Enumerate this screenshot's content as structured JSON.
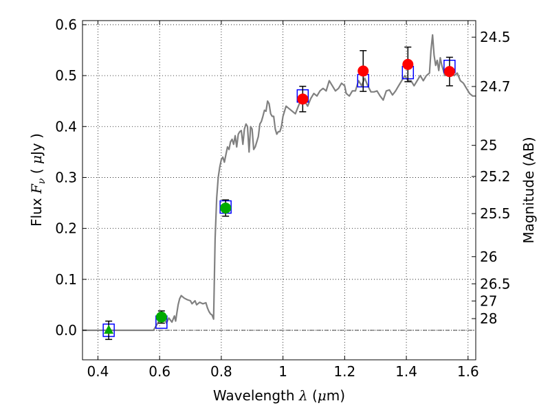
{
  "chart_data": {
    "type": "scatter",
    "xlabel": {
      "prefix": "Wavelength ",
      "symbol": "λ",
      "unit_open": " (",
      "unit": "μ",
      "unit_close": "m)"
    },
    "ylabel": {
      "prefix": "Flux  ",
      "symbol": "F",
      "subscript": "ν",
      "unit_open": "  ( ",
      "unit": "μ",
      "unit_close": "Jy )"
    },
    "y2label": "Magnitude (AB)",
    "xlim": [
      0.35,
      1.625
    ],
    "ylim": [
      -0.058,
      0.608
    ],
    "grid": true,
    "x_ticks": [
      {
        "value": 0.4,
        "label": "0.4"
      },
      {
        "value": 0.6,
        "label": "0.6"
      },
      {
        "value": 0.8,
        "label": "0.8"
      },
      {
        "value": 1.0,
        "label": "1"
      },
      {
        "value": 1.2,
        "label": "1.2"
      },
      {
        "value": 1.4,
        "label": "1.4"
      },
      {
        "value": 1.6,
        "label": "1.6"
      }
    ],
    "y_ticks": [
      {
        "value": 0.0,
        "label": "0.0"
      },
      {
        "value": 0.1,
        "label": "0.1"
      },
      {
        "value": 0.2,
        "label": "0.2"
      },
      {
        "value": 0.3,
        "label": "0.3"
      },
      {
        "value": 0.4,
        "label": "0.4"
      },
      {
        "value": 0.5,
        "label": "0.5"
      },
      {
        "value": 0.6,
        "label": "0.6"
      }
    ],
    "magnitude_ticks": [
      {
        "mag": 24.5,
        "label": "24.5"
      },
      {
        "mag": 24.7,
        "label": "24.7"
      },
      {
        "mag": 25.0,
        "label": "25"
      },
      {
        "mag": 25.2,
        "label": "25.2"
      },
      {
        "mag": 25.5,
        "label": "25.5"
      },
      {
        "mag": 26.0,
        "label": "26"
      },
      {
        "mag": 26.5,
        "label": "26.5"
      },
      {
        "mag": 27.0,
        "label": "27"
      },
      {
        "mag": 28.0,
        "label": "28"
      }
    ],
    "model_spectrum": {
      "color": "#808080",
      "points": [
        [
          0.35,
          0.0
        ],
        [
          0.58,
          0.0
        ],
        [
          0.6,
          0.02
        ],
        [
          0.615,
          0.024
        ],
        [
          0.622,
          0.014
        ],
        [
          0.63,
          0.024
        ],
        [
          0.64,
          0.016
        ],
        [
          0.648,
          0.028
        ],
        [
          0.652,
          0.018
        ],
        [
          0.655,
          0.03
        ],
        [
          0.66,
          0.05
        ],
        [
          0.665,
          0.062
        ],
        [
          0.67,
          0.068
        ],
        [
          0.68,
          0.063
        ],
        [
          0.69,
          0.06
        ],
        [
          0.7,
          0.058
        ],
        [
          0.705,
          0.052
        ],
        [
          0.715,
          0.058
        ],
        [
          0.72,
          0.05
        ],
        [
          0.73,
          0.055
        ],
        [
          0.74,
          0.052
        ],
        [
          0.75,
          0.054
        ],
        [
          0.755,
          0.044
        ],
        [
          0.76,
          0.037
        ],
        [
          0.765,
          0.032
        ],
        [
          0.77,
          0.03
        ],
        [
          0.775,
          0.022
        ],
        [
          0.78,
          0.18
        ],
        [
          0.785,
          0.26
        ],
        [
          0.79,
          0.3
        ],
        [
          0.795,
          0.32
        ],
        [
          0.8,
          0.335
        ],
        [
          0.805,
          0.34
        ],
        [
          0.81,
          0.33
        ],
        [
          0.815,
          0.345
        ],
        [
          0.82,
          0.36
        ],
        [
          0.825,
          0.355
        ],
        [
          0.83,
          0.37
        ],
        [
          0.835,
          0.375
        ],
        [
          0.84,
          0.365
        ],
        [
          0.845,
          0.382
        ],
        [
          0.85,
          0.36
        ],
        [
          0.855,
          0.385
        ],
        [
          0.86,
          0.39
        ],
        [
          0.865,
          0.392
        ],
        [
          0.87,
          0.365
        ],
        [
          0.875,
          0.395
        ],
        [
          0.88,
          0.405
        ],
        [
          0.885,
          0.4
        ],
        [
          0.89,
          0.35
        ],
        [
          0.895,
          0.4
        ],
        [
          0.9,
          0.395
        ],
        [
          0.905,
          0.355
        ],
        [
          0.91,
          0.36
        ],
        [
          0.915,
          0.37
        ],
        [
          0.92,
          0.38
        ],
        [
          0.925,
          0.405
        ],
        [
          0.93,
          0.41
        ],
        [
          0.935,
          0.42
        ],
        [
          0.94,
          0.432
        ],
        [
          0.945,
          0.43
        ],
        [
          0.95,
          0.45
        ],
        [
          0.955,
          0.445
        ],
        [
          0.96,
          0.425
        ],
        [
          0.965,
          0.42
        ],
        [
          0.97,
          0.42
        ],
        [
          0.975,
          0.395
        ],
        [
          0.98,
          0.385
        ],
        [
          0.985,
          0.39
        ],
        [
          0.99,
          0.39
        ],
        [
          0.995,
          0.4
        ],
        [
          1.0,
          0.42
        ],
        [
          1.01,
          0.44
        ],
        [
          1.02,
          0.435
        ],
        [
          1.03,
          0.43
        ],
        [
          1.04,
          0.425
        ],
        [
          1.05,
          0.44
        ],
        [
          1.06,
          0.455
        ],
        [
          1.07,
          0.45
        ],
        [
          1.08,
          0.44
        ],
        [
          1.09,
          0.455
        ],
        [
          1.1,
          0.465
        ],
        [
          1.11,
          0.46
        ],
        [
          1.12,
          0.47
        ],
        [
          1.13,
          0.475
        ],
        [
          1.14,
          0.47
        ],
        [
          1.15,
          0.49
        ],
        [
          1.16,
          0.48
        ],
        [
          1.17,
          0.47
        ],
        [
          1.18,
          0.475
        ],
        [
          1.19,
          0.485
        ],
        [
          1.2,
          0.48
        ],
        [
          1.205,
          0.465
        ],
        [
          1.215,
          0.46
        ],
        [
          1.225,
          0.47
        ],
        [
          1.235,
          0.47
        ],
        [
          1.245,
          0.49
        ],
        [
          1.255,
          0.48
        ],
        [
          1.265,
          0.495
        ],
        [
          1.275,
          0.48
        ],
        [
          1.285,
          0.468
        ],
        [
          1.295,
          0.468
        ],
        [
          1.305,
          0.47
        ],
        [
          1.315,
          0.46
        ],
        [
          1.325,
          0.452
        ],
        [
          1.335,
          0.47
        ],
        [
          1.345,
          0.472
        ],
        [
          1.355,
          0.462
        ],
        [
          1.365,
          0.47
        ],
        [
          1.375,
          0.48
        ],
        [
          1.385,
          0.49
        ],
        [
          1.395,
          0.5
        ],
        [
          1.405,
          0.49
        ],
        [
          1.415,
          0.49
        ],
        [
          1.425,
          0.48
        ],
        [
          1.435,
          0.49
        ],
        [
          1.445,
          0.5
        ],
        [
          1.455,
          0.49
        ],
        [
          1.465,
          0.5
        ],
        [
          1.475,
          0.505
        ],
        [
          1.48,
          0.55
        ],
        [
          1.485,
          0.58
        ],
        [
          1.49,
          0.54
        ],
        [
          1.495,
          0.52
        ],
        [
          1.5,
          0.53
        ],
        [
          1.505,
          0.51
        ],
        [
          1.51,
          0.535
        ],
        [
          1.515,
          0.52
        ],
        [
          1.525,
          0.5
        ],
        [
          1.535,
          0.51
        ],
        [
          1.545,
          0.505
        ],
        [
          1.555,
          0.5
        ],
        [
          1.565,
          0.505
        ],
        [
          1.575,
          0.49
        ],
        [
          1.585,
          0.485
        ],
        [
          1.595,
          0.475
        ],
        [
          1.605,
          0.465
        ],
        [
          1.615,
          0.46
        ],
        [
          1.625,
          0.46
        ]
      ]
    },
    "model_photometry": {
      "color": "#0000ff",
      "points": [
        [
          0.435,
          0.0
        ],
        [
          0.606,
          0.016
        ],
        [
          0.814,
          0.242
        ],
        [
          1.064,
          0.46
        ],
        [
          1.26,
          0.49
        ],
        [
          1.405,
          0.506
        ],
        [
          1.54,
          0.518
        ]
      ]
    },
    "observed_optical": {
      "color": "#00aa00",
      "points": [
        {
          "x": 0.435,
          "y": 0.0,
          "err": 0.018,
          "marker": "triangle"
        },
        {
          "x": 0.606,
          "y": 0.026,
          "err": 0.012,
          "marker": "circle"
        },
        {
          "x": 0.814,
          "y": 0.24,
          "err": 0.016,
          "marker": "circle"
        }
      ]
    },
    "observed_nir": {
      "color": "#ff0000",
      "points": [
        {
          "x": 1.064,
          "y": 0.454,
          "err": 0.025
        },
        {
          "x": 1.26,
          "y": 0.509,
          "err": 0.04
        },
        {
          "x": 1.405,
          "y": 0.522,
          "err": 0.034
        },
        {
          "x": 1.54,
          "y": 0.508,
          "err": 0.028
        }
      ]
    }
  }
}
